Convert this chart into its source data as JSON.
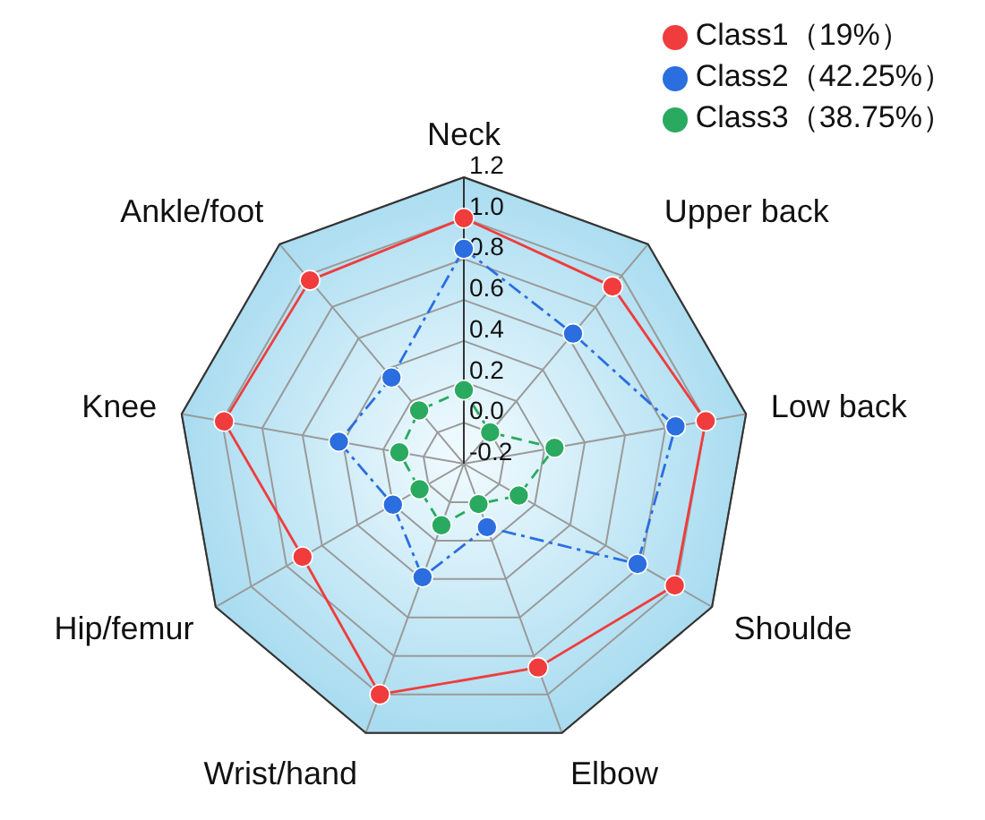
{
  "chart_data": {
    "type": "radar",
    "categories": [
      "Neck",
      "Upper back",
      "Low back",
      "Shoulde",
      "Elbow",
      "Wrist/hand",
      "Hip/femur",
      "Knee",
      "Ankle/foot"
    ],
    "ylim": [
      -0.2,
      1.2
    ],
    "yticks": [
      {
        "value": -0.2,
        "label": "-0.2"
      },
      {
        "value": 0,
        "label": "0.0"
      },
      0.2,
      0.4,
      0.6,
      0.8,
      {
        "value": 1,
        "label": "1.0"
      },
      1.2
    ],
    "grid": true,
    "legend": "top right",
    "marker": "circle",
    "series": [
      {
        "name": "Class1（19%）",
        "color": "#f03c3c",
        "line_style": "solid",
        "values": [
          1.0,
          0.93,
          1.0,
          0.99,
          0.86,
          1.0,
          0.71,
          0.99,
          0.97
        ]
      },
      {
        "name": "Class2（42.25%）",
        "color": "#2a6ee0",
        "line_style": "dashed",
        "values": [
          0.85,
          0.63,
          0.85,
          0.78,
          0.13,
          0.39,
          0.2,
          0.42,
          0.35
        ]
      },
      {
        "name": "Class3（38.75%）",
        "color": "#2aaa60",
        "line_style": "dotted",
        "values": [
          0.16,
          0.0,
          0.25,
          0.11,
          0.01,
          0.12,
          0.05,
          0.12,
          0.14
        ]
      }
    ]
  }
}
